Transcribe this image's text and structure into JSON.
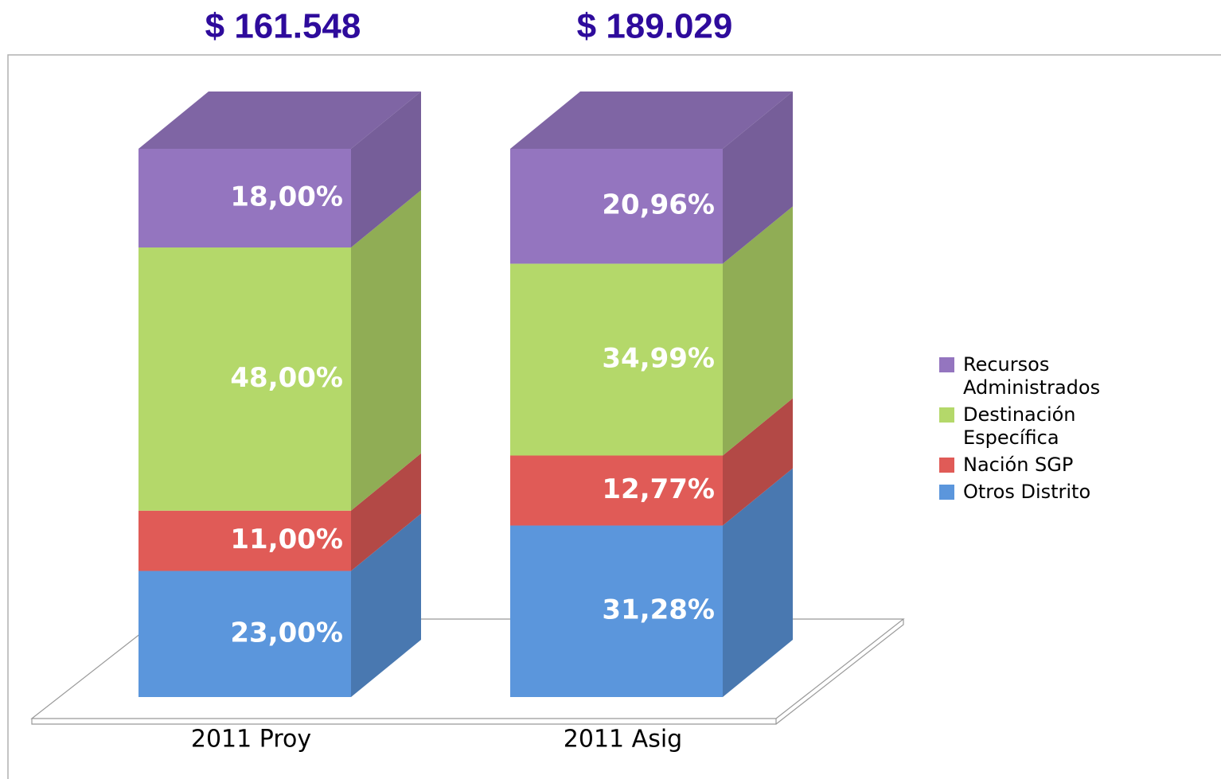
{
  "chart_data": {
    "type": "bar",
    "stacked": true,
    "annotations": [
      "$ 161.548",
      "$ 189.029"
    ],
    "categories": [
      "2011 Proy",
      "2011 Asig"
    ],
    "ylim": [
      0,
      100
    ],
    "legend": "right",
    "series": [
      {
        "name": "Otros Distrito",
        "color": "#5b96dc",
        "values": [
          23,
          31.28
        ],
        "value_labels": [
          "23,00%",
          "31,28%"
        ]
      },
      {
        "name": "Nación SGP",
        "color": "#e05b57",
        "values": [
          11,
          12.77
        ],
        "value_labels": [
          "11,00%",
          "12,77%"
        ]
      },
      {
        "name": "Destinación Específica",
        "color": "#b4d86a",
        "values": [
          48,
          34.99
        ],
        "value_labels": [
          "48,00%",
          "34,99%"
        ]
      },
      {
        "name": "Recursos Administrados",
        "color": "#9475bf",
        "values": [
          18,
          20.96
        ],
        "value_labels": [
          "18,00%",
          "20,96%"
        ]
      }
    ]
  }
}
